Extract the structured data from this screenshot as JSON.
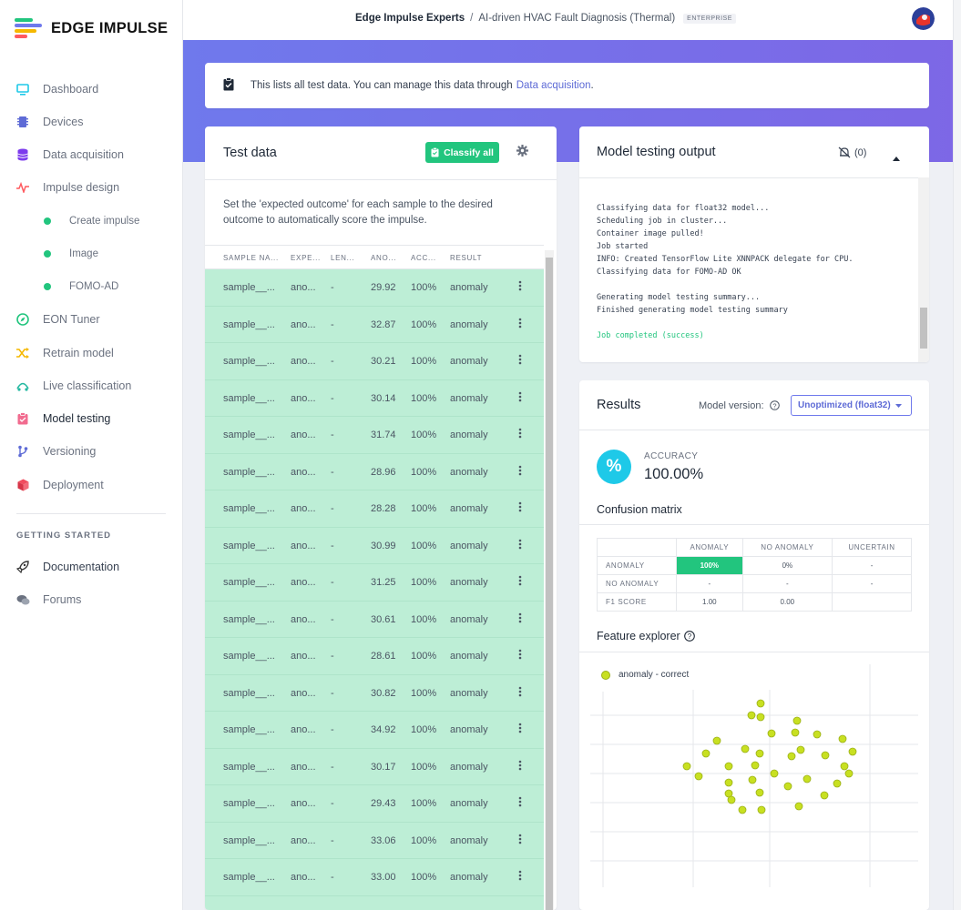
{
  "brand": {
    "name": "EDGE IMPULSE"
  },
  "sidebar": {
    "items": [
      {
        "label": "Dashboard",
        "icon": "monitor-icon"
      },
      {
        "label": "Devices",
        "icon": "chip-icon"
      },
      {
        "label": "Data acquisition",
        "icon": "database-icon"
      },
      {
        "label": "Impulse design",
        "icon": "pulse-icon"
      },
      {
        "label": "Create impulse",
        "icon": "dot-icon"
      },
      {
        "label": "Image",
        "icon": "dot-icon"
      },
      {
        "label": "FOMO-AD",
        "icon": "dot-icon"
      },
      {
        "label": "EON Tuner",
        "icon": "compass-icon"
      },
      {
        "label": "Retrain model",
        "icon": "shuffle-icon"
      },
      {
        "label": "Live classification",
        "icon": "signal-icon"
      },
      {
        "label": "Model testing",
        "icon": "clipboard-icon"
      },
      {
        "label": "Versioning",
        "icon": "branch-icon"
      },
      {
        "label": "Deployment",
        "icon": "cube-icon"
      }
    ],
    "getting_started_title": "GETTING STARTED",
    "bottom_items": [
      {
        "label": "Documentation",
        "icon": "rocket-icon"
      },
      {
        "label": "Forums",
        "icon": "chat-icon"
      }
    ]
  },
  "header": {
    "org": "Edge Impulse Experts",
    "separator": "/",
    "project": "AI-driven HVAC Fault Diagnosis (Thermal)",
    "badge": "ENTERPRISE"
  },
  "info_banner": {
    "text": "This lists all test data. You can manage this data through",
    "link": "Data acquisition",
    "suffix": "."
  },
  "test_data": {
    "title": "Test data",
    "classify_label": "Classify all",
    "description": "Set the 'expected outcome' for each sample to the desired outcome to automatically score the impulse.",
    "columns": [
      "SAMPLE NA...",
      "EXPE...",
      "LEN...",
      "ANO...",
      "ACC...",
      "RESULT"
    ],
    "rows": [
      {
        "name": "sample__...",
        "expected": "ano...",
        "length": "-",
        "anomaly": "29.92",
        "accuracy": "100%",
        "result": "anomaly"
      },
      {
        "name": "sample__...",
        "expected": "ano...",
        "length": "-",
        "anomaly": "32.87",
        "accuracy": "100%",
        "result": "anomaly"
      },
      {
        "name": "sample__...",
        "expected": "ano...",
        "length": "-",
        "anomaly": "30.21",
        "accuracy": "100%",
        "result": "anomaly"
      },
      {
        "name": "sample__...",
        "expected": "ano...",
        "length": "-",
        "anomaly": "30.14",
        "accuracy": "100%",
        "result": "anomaly"
      },
      {
        "name": "sample__...",
        "expected": "ano...",
        "length": "-",
        "anomaly": "31.74",
        "accuracy": "100%",
        "result": "anomaly"
      },
      {
        "name": "sample__...",
        "expected": "ano...",
        "length": "-",
        "anomaly": "28.96",
        "accuracy": "100%",
        "result": "anomaly"
      },
      {
        "name": "sample__...",
        "expected": "ano...",
        "length": "-",
        "anomaly": "28.28",
        "accuracy": "100%",
        "result": "anomaly"
      },
      {
        "name": "sample__...",
        "expected": "ano...",
        "length": "-",
        "anomaly": "30.99",
        "accuracy": "100%",
        "result": "anomaly"
      },
      {
        "name": "sample__...",
        "expected": "ano...",
        "length": "-",
        "anomaly": "31.25",
        "accuracy": "100%",
        "result": "anomaly"
      },
      {
        "name": "sample__...",
        "expected": "ano...",
        "length": "-",
        "anomaly": "30.61",
        "accuracy": "100%",
        "result": "anomaly"
      },
      {
        "name": "sample__...",
        "expected": "ano...",
        "length": "-",
        "anomaly": "28.61",
        "accuracy": "100%",
        "result": "anomaly"
      },
      {
        "name": "sample__...",
        "expected": "ano...",
        "length": "-",
        "anomaly": "30.82",
        "accuracy": "100%",
        "result": "anomaly"
      },
      {
        "name": "sample__...",
        "expected": "ano...",
        "length": "-",
        "anomaly": "34.92",
        "accuracy": "100%",
        "result": "anomaly"
      },
      {
        "name": "sample__...",
        "expected": "ano...",
        "length": "-",
        "anomaly": "30.17",
        "accuracy": "100%",
        "result": "anomaly"
      },
      {
        "name": "sample__...",
        "expected": "ano...",
        "length": "-",
        "anomaly": "29.43",
        "accuracy": "100%",
        "result": "anomaly"
      },
      {
        "name": "sample__...",
        "expected": "ano...",
        "length": "-",
        "anomaly": "33.06",
        "accuracy": "100%",
        "result": "anomaly"
      },
      {
        "name": "sample__...",
        "expected": "ano...",
        "length": "-",
        "anomaly": "33.00",
        "accuracy": "100%",
        "result": "anomaly"
      }
    ]
  },
  "output": {
    "title": "Model testing output",
    "notifications": "(0)",
    "lines": [
      "Classifying data for float32 model...",
      "Scheduling job in cluster...",
      "Container image pulled!",
      "Job started",
      "INFO: Created TensorFlow Lite XNNPACK delegate for CPU.",
      "Classifying data for FOMO-AD OK",
      "",
      "Generating model testing summary...",
      "Finished generating model testing summary",
      ""
    ],
    "success_line": "Job completed (success)"
  },
  "results": {
    "title": "Results",
    "model_version_label": "Model version:",
    "model_version_value": "Unoptimized (float32)",
    "accuracy_label": "ACCURACY",
    "accuracy_value": "100.00%",
    "accuracy_symbol": "%",
    "confusion_title": "Confusion matrix",
    "confusion": {
      "columns": [
        "ANOMALY",
        "NO ANOMALY",
        "UNCERTAIN"
      ],
      "rows": [
        {
          "label": "ANOMALY",
          "cells": [
            "100%",
            "0%",
            "-"
          ]
        },
        {
          "label": "NO ANOMALY",
          "cells": [
            "-",
            "-",
            "-"
          ]
        },
        {
          "label": "F1 SCORE",
          "cells": [
            "1.00",
            "0.00",
            ""
          ]
        }
      ]
    },
    "feature_title": "Feature explorer",
    "legend_label": "anomaly - correct"
  },
  "colors": {
    "accent": "#6f79ec",
    "success": "#22c57e",
    "row_bg": "#bdeed6",
    "point": "#c8e021"
  }
}
